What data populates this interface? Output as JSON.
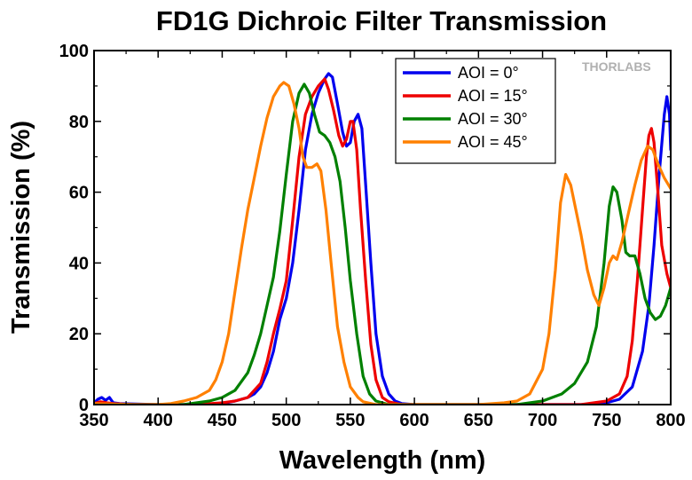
{
  "chart_data": {
    "type": "line",
    "title": "FD1G Dichroic Filter Transmission",
    "xlabel": "Wavelength (nm)",
    "ylabel": "Transmission (%)",
    "xlim": [
      350,
      800
    ],
    "ylim": [
      0,
      100
    ],
    "x_ticks": [
      350,
      400,
      450,
      500,
      550,
      600,
      650,
      700,
      750,
      800
    ],
    "y_ticks": [
      0,
      20,
      40,
      60,
      80,
      100
    ],
    "grid": false,
    "legend_position": "top-right",
    "logo": "THORLABS",
    "series": [
      {
        "name": "AOI = 0°",
        "color": "#0000ee",
        "points": [
          [
            350,
            0.5
          ],
          [
            353,
            1.5
          ],
          [
            356,
            2
          ],
          [
            359,
            1.2
          ],
          [
            362,
            2
          ],
          [
            365,
            0.5
          ],
          [
            370,
            0.3
          ],
          [
            400,
            0
          ],
          [
            430,
            0
          ],
          [
            450,
            0.3
          ],
          [
            460,
            1
          ],
          [
            470,
            2
          ],
          [
            475,
            3
          ],
          [
            480,
            5
          ],
          [
            485,
            9
          ],
          [
            490,
            15
          ],
          [
            495,
            24
          ],
          [
            500,
            30
          ],
          [
            505,
            40
          ],
          [
            510,
            55
          ],
          [
            515,
            72
          ],
          [
            520,
            82
          ],
          [
            525,
            88
          ],
          [
            530,
            92
          ],
          [
            533,
            93.5
          ],
          [
            536,
            92.5
          ],
          [
            540,
            85
          ],
          [
            544,
            77
          ],
          [
            547,
            73
          ],
          [
            550,
            74
          ],
          [
            553,
            80
          ],
          [
            556,
            82
          ],
          [
            559,
            78
          ],
          [
            562,
            62
          ],
          [
            566,
            40
          ],
          [
            570,
            20
          ],
          [
            575,
            8
          ],
          [
            580,
            3
          ],
          [
            585,
            1
          ],
          [
            590,
            0.3
          ],
          [
            600,
            0
          ],
          [
            700,
            0
          ],
          [
            740,
            0
          ],
          [
            750,
            0.5
          ],
          [
            760,
            1.5
          ],
          [
            770,
            5
          ],
          [
            778,
            15
          ],
          [
            783,
            28
          ],
          [
            787,
            45
          ],
          [
            791,
            65
          ],
          [
            795,
            82
          ],
          [
            797,
            87
          ],
          [
            799,
            82
          ],
          [
            800,
            72
          ]
        ]
      },
      {
        "name": "AOI = 15°",
        "color": "#ee0000",
        "points": [
          [
            350,
            0.3
          ],
          [
            355,
            0.8
          ],
          [
            360,
            0.5
          ],
          [
            365,
            0.3
          ],
          [
            380,
            0
          ],
          [
            430,
            0
          ],
          [
            450,
            0.5
          ],
          [
            460,
            1
          ],
          [
            470,
            2
          ],
          [
            475,
            4
          ],
          [
            480,
            6
          ],
          [
            485,
            12
          ],
          [
            490,
            20
          ],
          [
            495,
            27
          ],
          [
            500,
            35
          ],
          [
            505,
            52
          ],
          [
            510,
            70
          ],
          [
            515,
            82
          ],
          [
            520,
            87
          ],
          [
            525,
            90
          ],
          [
            530,
            92
          ],
          [
            533,
            89
          ],
          [
            537,
            83
          ],
          [
            541,
            76
          ],
          [
            544,
            73
          ],
          [
            547,
            75
          ],
          [
            550,
            80
          ],
          [
            552,
            80
          ],
          [
            555,
            72
          ],
          [
            558,
            55
          ],
          [
            562,
            35
          ],
          [
            566,
            17
          ],
          [
            570,
            7
          ],
          [
            575,
            2
          ],
          [
            580,
            0.8
          ],
          [
            590,
            0
          ],
          [
            700,
            0
          ],
          [
            730,
            0
          ],
          [
            740,
            0.5
          ],
          [
            750,
            1
          ],
          [
            760,
            3
          ],
          [
            766,
            8
          ],
          [
            770,
            18
          ],
          [
            774,
            35
          ],
          [
            778,
            55
          ],
          [
            781,
            70
          ],
          [
            783,
            76
          ],
          [
            785,
            78
          ],
          [
            787,
            74
          ],
          [
            790,
            60
          ],
          [
            793,
            45
          ],
          [
            797,
            37
          ],
          [
            800,
            33
          ]
        ]
      },
      {
        "name": "AOI = 30°",
        "color": "#008000",
        "points": [
          [
            350,
            0.2
          ],
          [
            380,
            0
          ],
          [
            420,
            0
          ],
          [
            430,
            0.5
          ],
          [
            440,
            1
          ],
          [
            450,
            2
          ],
          [
            460,
            4
          ],
          [
            470,
            9
          ],
          [
            475,
            14
          ],
          [
            480,
            20
          ],
          [
            485,
            28
          ],
          [
            490,
            36
          ],
          [
            495,
            49
          ],
          [
            500,
            65
          ],
          [
            505,
            80
          ],
          [
            510,
            88
          ],
          [
            514,
            90.5
          ],
          [
            518,
            88
          ],
          [
            522,
            82
          ],
          [
            526,
            77
          ],
          [
            530,
            76
          ],
          [
            534,
            74
          ],
          [
            538,
            70
          ],
          [
            542,
            63
          ],
          [
            546,
            50
          ],
          [
            550,
            35
          ],
          [
            555,
            20
          ],
          [
            560,
            8
          ],
          [
            565,
            3
          ],
          [
            570,
            1
          ],
          [
            580,
            0
          ],
          [
            650,
            0
          ],
          [
            680,
            0
          ],
          [
            700,
            1
          ],
          [
            715,
            3
          ],
          [
            725,
            6
          ],
          [
            735,
            12
          ],
          [
            742,
            22
          ],
          [
            748,
            40
          ],
          [
            752,
            56
          ],
          [
            755,
            61.5
          ],
          [
            758,
            60
          ],
          [
            762,
            52
          ],
          [
            765,
            43
          ],
          [
            768,
            42
          ],
          [
            772,
            42
          ],
          [
            776,
            37
          ],
          [
            780,
            30
          ],
          [
            784,
            26
          ],
          [
            788,
            24
          ],
          [
            792,
            25
          ],
          [
            796,
            28
          ],
          [
            800,
            33
          ]
        ]
      },
      {
        "name": "AOI = 45°",
        "color": "#ff8000",
        "points": [
          [
            350,
            0.3
          ],
          [
            380,
            0
          ],
          [
            400,
            0
          ],
          [
            410,
            0.3
          ],
          [
            420,
            1
          ],
          [
            430,
            2
          ],
          [
            440,
            4
          ],
          [
            445,
            7
          ],
          [
            450,
            12
          ],
          [
            455,
            20
          ],
          [
            460,
            32
          ],
          [
            465,
            44
          ],
          [
            470,
            55
          ],
          [
            475,
            64
          ],
          [
            480,
            73
          ],
          [
            485,
            81
          ],
          [
            490,
            87
          ],
          [
            495,
            90
          ],
          [
            498,
            91
          ],
          [
            502,
            90
          ],
          [
            506,
            85
          ],
          [
            510,
            78
          ],
          [
            513,
            70
          ],
          [
            516,
            67
          ],
          [
            520,
            67
          ],
          [
            524,
            68
          ],
          [
            527,
            66
          ],
          [
            531,
            55
          ],
          [
            535,
            40
          ],
          [
            540,
            22
          ],
          [
            545,
            12
          ],
          [
            550,
            5
          ],
          [
            556,
            2
          ],
          [
            560,
            0.8
          ],
          [
            570,
            0
          ],
          [
            600,
            0
          ],
          [
            650,
            0
          ],
          [
            670,
            0.5
          ],
          [
            680,
            1
          ],
          [
            690,
            3
          ],
          [
            700,
            10
          ],
          [
            705,
            20
          ],
          [
            710,
            38
          ],
          [
            714,
            57
          ],
          [
            718,
            65
          ],
          [
            722,
            62
          ],
          [
            726,
            55
          ],
          [
            730,
            48
          ],
          [
            735,
            38
          ],
          [
            740,
            31
          ],
          [
            744,
            28
          ],
          [
            748,
            33
          ],
          [
            752,
            40
          ],
          [
            755,
            42
          ],
          [
            758,
            41
          ],
          [
            762,
            46
          ],
          [
            767,
            54
          ],
          [
            772,
            62
          ],
          [
            777,
            69
          ],
          [
            782,
            73
          ],
          [
            786,
            72
          ],
          [
            790,
            68
          ],
          [
            795,
            64
          ],
          [
            800,
            61
          ]
        ]
      }
    ]
  }
}
